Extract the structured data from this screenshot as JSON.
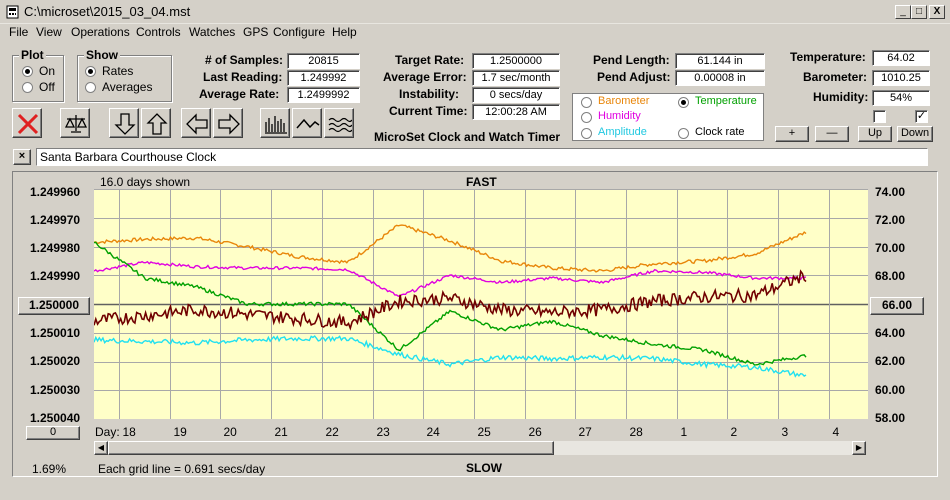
{
  "window": {
    "title": "C:\\microset\\2015_03_04.mst",
    "controls": [
      "_",
      "□",
      "X"
    ]
  },
  "menu": [
    "File",
    "View",
    "Operations",
    "Controls",
    "Watches",
    "GPS",
    "Configure",
    "Help"
  ],
  "plot_group": {
    "title": "Plot",
    "on": "On",
    "off": "Off",
    "selected": "On"
  },
  "show_group": {
    "title": "Show",
    "rates": "Rates",
    "averages": "Averages",
    "selected": "Rates"
  },
  "stats": {
    "samples_label": "# of Samples:",
    "samples": "20815",
    "last_reading_label": "Last Reading:",
    "last_reading": "1.249992",
    "avg_rate_label": "Average Rate:",
    "avg_rate": "1.2499992",
    "target_rate_label": "Target Rate:",
    "target_rate": "1.2500000",
    "avg_error_label": "Average Error:",
    "avg_error": "1.7 sec/month",
    "instability_label": "Instability:",
    "instability": "0 secs/day",
    "current_time_label": "Current Time:",
    "current_time": "12:00:28 AM",
    "pend_length_label": "Pend Length:",
    "pend_length": "61.144 in",
    "pend_adjust_label": "Pend Adjust:",
    "pend_adjust": "0.00008 in",
    "temperature_label": "Temperature:",
    "temperature": "64.02",
    "barometer_label": "Barometer:",
    "barometer": "1010.25",
    "humidity_label": "Humidity:",
    "humidity": "54%"
  },
  "app_title": "MicroSet Clock and Watch Timer",
  "sensor_select": {
    "barometer": "Barometer",
    "temperature": "Temperature",
    "humidity": "Humidity",
    "amplitude": "Amplitude",
    "clock_rate": "Clock rate",
    "selected": "Temperature"
  },
  "colors": {
    "barometer": "#e8860a",
    "temperature": "#00a000",
    "humidity": "#e000e0",
    "amplitude": "#20e0f0",
    "rate": "#700000",
    "plot_bg": "#ffffc8"
  },
  "right_buttons": {
    "plus": "+",
    "minus": "—",
    "up": "Up",
    "down": "Down"
  },
  "checkboxes": [
    {
      "checked": false
    },
    {
      "checked": true
    }
  ],
  "clock_name": "Santa Barbara Courthouse Clock",
  "chart": {
    "days_shown": "16.0 days shown",
    "fast_label": "FAST",
    "slow_label": "SLOW",
    "left_axis": [
      "1.249960",
      "1.249970",
      "1.249980",
      "1.249990",
      "1.250000",
      "1.250010",
      "1.250020",
      "1.250030",
      "1.250040"
    ],
    "left_center_button": "1.250000",
    "right_axis": [
      "74.00",
      "72.00",
      "70.00",
      "68.00",
      "66.00",
      "64.00",
      "62.00",
      "60.00",
      "58.00"
    ],
    "right_center_button": "66.00",
    "day_label": "Day:",
    "days": [
      "18",
      "19",
      "20",
      "21",
      "22",
      "23",
      "24",
      "25",
      "26",
      "27",
      "28",
      "1",
      "2",
      "3",
      "4"
    ],
    "zero_button": "0",
    "percent": "1.69%",
    "grid_note": "Each grid line = 0.691 secs/day"
  },
  "chart_data": {
    "type": "line",
    "x_label": "Day",
    "x_categories": [
      "18",
      "19",
      "20",
      "21",
      "22",
      "23",
      "24",
      "25",
      "26",
      "27",
      "28",
      "1",
      "2",
      "3",
      "4"
    ],
    "left_axis_range": [
      1.25004,
      1.24996
    ],
    "right_axis_range": [
      58.0,
      74.0
    ],
    "series": [
      {
        "name": "Barometer",
        "color": "#e8860a",
        "values": [
          70.3,
          70.5,
          70.6,
          70.0,
          69.3,
          68.9,
          71.5,
          70.4,
          69.0,
          68.5,
          68.3,
          68.8,
          69.0,
          69.5,
          71.0
        ]
      },
      {
        "name": "Humidity",
        "color": "#e000e0",
        "values": [
          68.3,
          68.9,
          68.6,
          68.5,
          68.5,
          68.4,
          66.5,
          68.0,
          67.5,
          67.8,
          67.5,
          68.3,
          68.2,
          67.8,
          67.8
        ]
      },
      {
        "name": "Temperature",
        "color": "#00a000",
        "values": [
          70.3,
          67.8,
          67.2,
          66.0,
          66.0,
          66.0,
          62.8,
          65.5,
          64.2,
          64.8,
          63.8,
          63.2,
          62.8,
          61.8,
          62.4
        ]
      },
      {
        "name": "Amplitude",
        "color": "#20e0f0",
        "values": [
          63.5,
          63.4,
          63.3,
          63.5,
          63.6,
          63.6,
          62.5,
          61.8,
          62.3,
          62.2,
          62.3,
          62.2,
          61.8,
          61.6,
          61.0
        ]
      },
      {
        "name": "Clock rate",
        "color": "#700000",
        "values": [
          64.8,
          65.2,
          65.6,
          65.3,
          65.0,
          64.7,
          66.2,
          66.4,
          65.6,
          65.4,
          65.6,
          66.2,
          66.5,
          66.6,
          68.0
        ]
      }
    ]
  }
}
